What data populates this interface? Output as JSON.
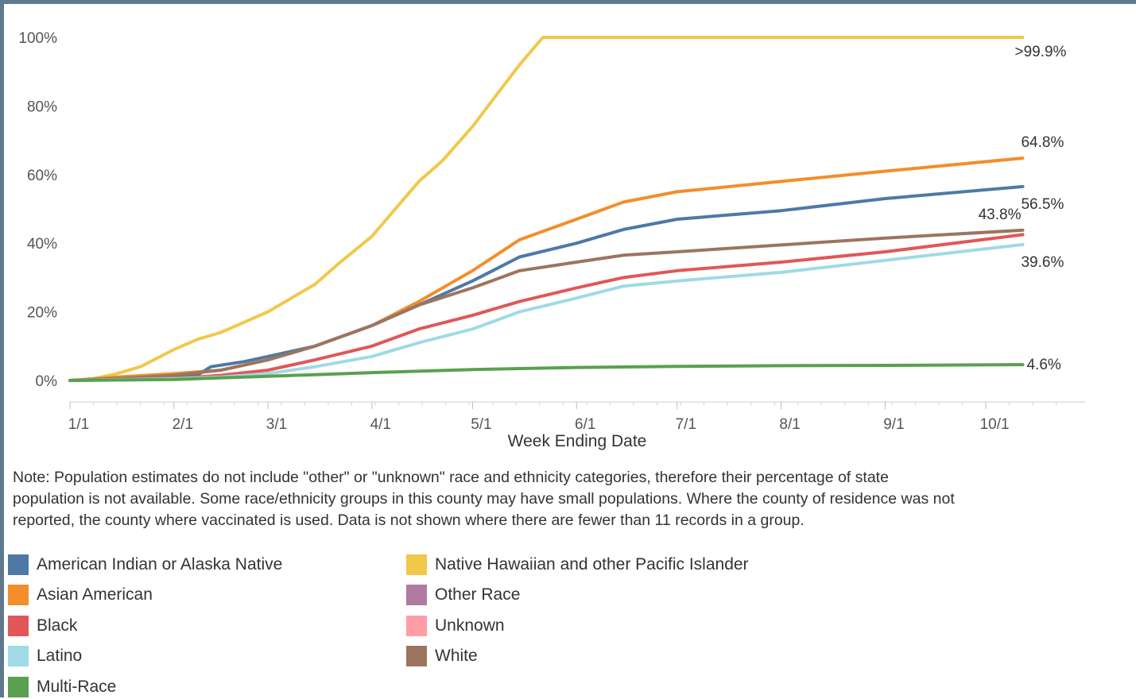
{
  "chart_data": {
    "type": "line",
    "title": "",
    "xlabel": "Week Ending Date",
    "ylabel": "",
    "x_unit": "week ending date (2021)",
    "x_ticks": [
      "1/1",
      "2/1",
      "3/1",
      "4/1",
      "5/1",
      "6/1",
      "7/1",
      "8/1",
      "9/1",
      "10/1"
    ],
    "y_ticks": [
      "100%",
      "80%",
      "60%",
      "40%",
      "20%",
      "0%"
    ],
    "ylim": [
      0,
      100
    ],
    "grid": false,
    "legend_position": "bottom",
    "series": [
      {
        "name": "Native Hawaiian and other Pacific Islander",
        "color": "#f1c84a",
        "end_label": ">99.9%",
        "points": [
          [
            "2021-01-01",
            0
          ],
          [
            "2021-01-08",
            0.5
          ],
          [
            "2021-01-15",
            2
          ],
          [
            "2021-01-22",
            4
          ],
          [
            "2021-02-01",
            9
          ],
          [
            "2021-02-08",
            12
          ],
          [
            "2021-02-15",
            14
          ],
          [
            "2021-02-22",
            17
          ],
          [
            "2021-03-01",
            20
          ],
          [
            "2021-03-08",
            24
          ],
          [
            "2021-03-15",
            28
          ],
          [
            "2021-03-22",
            34
          ],
          [
            "2021-04-01",
            42
          ],
          [
            "2021-04-08",
            50
          ],
          [
            "2021-04-15",
            58
          ],
          [
            "2021-04-22",
            64
          ],
          [
            "2021-05-01",
            74
          ],
          [
            "2021-05-08",
            83
          ],
          [
            "2021-05-15",
            92
          ],
          [
            "2021-05-22",
            100
          ],
          [
            "2021-06-01",
            100
          ],
          [
            "2021-07-01",
            100
          ],
          [
            "2021-08-01",
            100
          ],
          [
            "2021-09-01",
            100
          ],
          [
            "2021-10-12",
            100
          ]
        ]
      },
      {
        "name": "Asian American",
        "color": "#f28e2b",
        "end_label": "64.8%",
        "points": [
          [
            "2021-01-01",
            0
          ],
          [
            "2021-01-15",
            1
          ],
          [
            "2021-02-01",
            2
          ],
          [
            "2021-02-15",
            3
          ],
          [
            "2021-03-01",
            6
          ],
          [
            "2021-03-15",
            10
          ],
          [
            "2021-04-01",
            16
          ],
          [
            "2021-04-15",
            23
          ],
          [
            "2021-05-01",
            32
          ],
          [
            "2021-05-15",
            41
          ],
          [
            "2021-06-01",
            47
          ],
          [
            "2021-06-15",
            52
          ],
          [
            "2021-07-01",
            55
          ],
          [
            "2021-08-01",
            58
          ],
          [
            "2021-09-01",
            61
          ],
          [
            "2021-10-12",
            64.8
          ]
        ]
      },
      {
        "name": "American Indian or Alaska Native",
        "color": "#4e79a7",
        "end_label": "56.5%",
        "points": [
          [
            "2021-01-01",
            0
          ],
          [
            "2021-01-15",
            0.5
          ],
          [
            "2021-02-01",
            1
          ],
          [
            "2021-02-08",
            1.5
          ],
          [
            "2021-02-12",
            4
          ],
          [
            "2021-02-22",
            5.5
          ],
          [
            "2021-03-01",
            7
          ],
          [
            "2021-03-15",
            10
          ],
          [
            "2021-04-01",
            16
          ],
          [
            "2021-04-15",
            22
          ],
          [
            "2021-05-01",
            29
          ],
          [
            "2021-05-15",
            36
          ],
          [
            "2021-06-01",
            40
          ],
          [
            "2021-06-15",
            44
          ],
          [
            "2021-07-01",
            47
          ],
          [
            "2021-08-01",
            49.5
          ],
          [
            "2021-09-01",
            53
          ],
          [
            "2021-10-12",
            56.5
          ]
        ]
      },
      {
        "name": "White",
        "color": "#9c755f",
        "end_label": "43.8%",
        "points": [
          [
            "2021-01-01",
            0
          ],
          [
            "2021-01-15",
            0.5
          ],
          [
            "2021-02-01",
            1.5
          ],
          [
            "2021-02-15",
            3
          ],
          [
            "2021-03-01",
            6
          ],
          [
            "2021-03-15",
            10
          ],
          [
            "2021-04-01",
            16
          ],
          [
            "2021-04-15",
            22
          ],
          [
            "2021-05-01",
            27
          ],
          [
            "2021-05-15",
            32
          ],
          [
            "2021-06-01",
            34.5
          ],
          [
            "2021-06-15",
            36.5
          ],
          [
            "2021-07-01",
            37.5
          ],
          [
            "2021-08-01",
            39.5
          ],
          [
            "2021-09-01",
            41.5
          ],
          [
            "2021-10-12",
            43.8
          ]
        ]
      },
      {
        "name": "Black",
        "color": "#e15759",
        "end_label": "",
        "points": [
          [
            "2021-01-01",
            0
          ],
          [
            "2021-02-01",
            0.5
          ],
          [
            "2021-02-15",
            1.5
          ],
          [
            "2021-03-01",
            3
          ],
          [
            "2021-03-15",
            6
          ],
          [
            "2021-04-01",
            10
          ],
          [
            "2021-04-15",
            15
          ],
          [
            "2021-05-01",
            19
          ],
          [
            "2021-05-15",
            23
          ],
          [
            "2021-06-01",
            27
          ],
          [
            "2021-06-15",
            30
          ],
          [
            "2021-07-01",
            32
          ],
          [
            "2021-08-01",
            34.5
          ],
          [
            "2021-09-01",
            37.5
          ],
          [
            "2021-10-12",
            42.5
          ]
        ]
      },
      {
        "name": "Latino",
        "color": "#9fdae5",
        "end_label": "39.6%",
        "points": [
          [
            "2021-01-01",
            0
          ],
          [
            "2021-02-01",
            0.5
          ],
          [
            "2021-02-15",
            1
          ],
          [
            "2021-03-01",
            2
          ],
          [
            "2021-03-15",
            4
          ],
          [
            "2021-04-01",
            7
          ],
          [
            "2021-04-15",
            11
          ],
          [
            "2021-05-01",
            15
          ],
          [
            "2021-05-15",
            20
          ],
          [
            "2021-06-01",
            24
          ],
          [
            "2021-06-15",
            27.5
          ],
          [
            "2021-07-01",
            29
          ],
          [
            "2021-08-01",
            31.5
          ],
          [
            "2021-09-01",
            35
          ],
          [
            "2021-10-12",
            39.6
          ]
        ]
      },
      {
        "name": "Multi-Race",
        "color": "#59a14f",
        "end_label": "4.6%",
        "points": [
          [
            "2021-01-01",
            0
          ],
          [
            "2021-02-01",
            0.3
          ],
          [
            "2021-03-01",
            1.2
          ],
          [
            "2021-04-01",
            2.3
          ],
          [
            "2021-05-01",
            3.2
          ],
          [
            "2021-06-01",
            3.8
          ],
          [
            "2021-07-01",
            4.1
          ],
          [
            "2021-08-01",
            4.3
          ],
          [
            "2021-09-01",
            4.4
          ],
          [
            "2021-10-12",
            4.6
          ]
        ]
      }
    ]
  },
  "note": {
    "lines": [
      "Note: Population estimates do not include \"other\" or \"unknown\" race and ethnicity categories, therefore their percentage of state",
      "population is not available. Some race/ethnicity groups in this county may have small populations. Where the county of residence was not",
      "reported, the county where vaccinated is used. Data is not shown where there are fewer than 11 records in a group."
    ]
  },
  "legend": {
    "items": [
      {
        "label": "American Indian or Alaska Native",
        "color": "#4e79a7"
      },
      {
        "label": "Asian American",
        "color": "#f28e2b"
      },
      {
        "label": "Black",
        "color": "#e15759"
      },
      {
        "label": "Latino",
        "color": "#9fdae5"
      },
      {
        "label": "Multi-Race",
        "color": "#59a14f"
      },
      {
        "label": "Native Hawaiian and other Pacific Islander",
        "color": "#f1c84a"
      },
      {
        "label": "Other Race",
        "color": "#b07aa1"
      },
      {
        "label": "Unknown",
        "color": "#ff9da7"
      },
      {
        "label": "White",
        "color": "#9c755f"
      }
    ]
  }
}
